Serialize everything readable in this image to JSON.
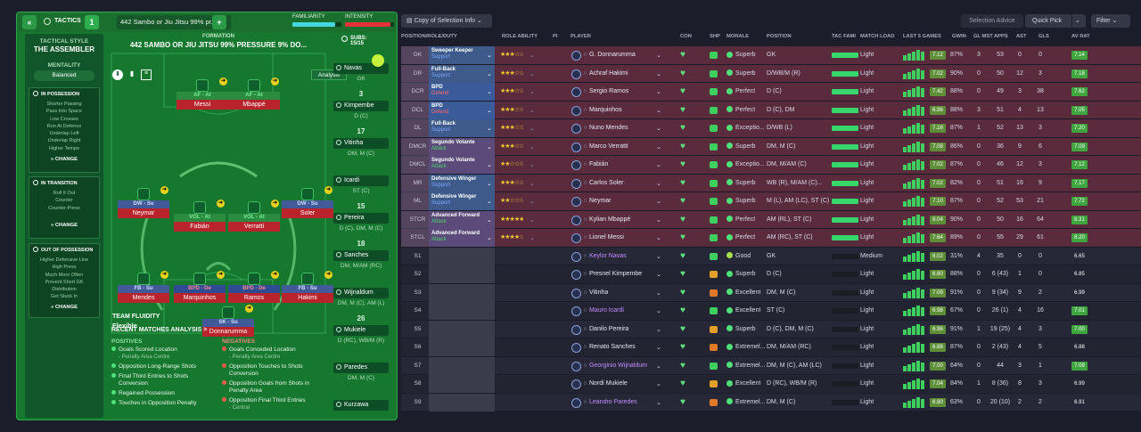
{
  "header": {
    "back_icon": "double-chevron-left-icon",
    "tactics_label": "TACTICS",
    "slot_number": "1",
    "tactic_name": "442 Sambo or Jiu Jitsu 99% pr...",
    "add_label": "+",
    "familiarity_label": "FAMILIARITY",
    "familiarity_fraction": 0.88,
    "intensity_label": "INTENSITY",
    "intensity_fraction": 0.92
  },
  "side": {
    "style_label": "TACTICAL STYLE",
    "style_value": "THE ASSEMBLER",
    "mentality_label": "MENTALITY",
    "mentality_value": "Balanced",
    "in_possession": {
      "title": "IN POSSESSION",
      "items": [
        "Shorter Passing",
        "Pass Into Space",
        "Low Crosses",
        "Run At Defence",
        "Underlap Left",
        "Underlap Right",
        "Higher Tempo"
      ],
      "change": "CHANGE"
    },
    "in_transition": {
      "title": "IN TRANSITION",
      "items": [
        "Roll It Out",
        "Counter",
        "Counter-Press"
      ],
      "change": "CHANGE"
    },
    "out_of_possession": {
      "title": "OUT OF POSSESSION",
      "items": [
        "Higher Defensive Line",
        "High Press",
        "Much More Often",
        "Prevent Short GK",
        "Distribution",
        "Get Stuck In"
      ],
      "change": "CHANGE"
    }
  },
  "pitch": {
    "formation_label": "FORMATION",
    "formation_name": "442 SAMBO OR JIU JITSU 99% PRESSURE 9% DO...",
    "analysis_label": "Analysis",
    "team_fluidity_label": "TEAM FLUIDITY",
    "team_fluidity_value": "Flexible",
    "players": [
      {
        "role": "AF - At",
        "name": "Messi"
      },
      {
        "role": "AF - At",
        "name": "Mbappé"
      },
      {
        "role": "DW - Su",
        "name": "Neymar"
      },
      {
        "role": "VOL - At",
        "name": "Fabián"
      },
      {
        "role": "VOL - At",
        "name": "Verratti"
      },
      {
        "role": "DW - Su",
        "name": "Soler"
      },
      {
        "role": "FB - Su",
        "name": "Mendes"
      },
      {
        "role": "BPD - De",
        "name": "Marquinhos"
      },
      {
        "role": "BPD - De",
        "name": "Ramos"
      },
      {
        "role": "FB - Su",
        "name": "Hakimi"
      },
      {
        "role": "SK - Su",
        "name": "Donnarumma"
      }
    ]
  },
  "subs": {
    "label": "SUBS:",
    "count": "15/15",
    "players": [
      {
        "num": "",
        "name": "Navas",
        "pos": "GK"
      },
      {
        "num": "3",
        "name": "Kimpembe",
        "pos": "D (C)"
      },
      {
        "num": "17",
        "name": "Vitinha",
        "pos": "DM, M (C)"
      },
      {
        "num": "",
        "name": "Icardi",
        "pos": "ST (C)"
      },
      {
        "num": "15",
        "name": "Pereira",
        "pos": "D (C), DM, M (C)"
      },
      {
        "num": "18",
        "name": "Sanches",
        "pos": "DM, M/AM (RC)"
      },
      {
        "num": "",
        "name": "Wijnaldum",
        "pos": "DM, M (C), AM (L)"
      },
      {
        "num": "26",
        "name": "Mukiele",
        "pos": "D (RC), WB/M (R)"
      },
      {
        "num": "",
        "name": "Paredes",
        "pos": "DM, M (C)"
      },
      {
        "num": "",
        "name": "Kurzawa",
        "pos": ""
      }
    ]
  },
  "analysis": {
    "title": "RECENT MATCHES ANALYSIS >",
    "positives_label": "POSITIVES",
    "negatives_label": "NEGATIVES",
    "positives": [
      "Goals Scored Location",
      "- Penalty Area Centre",
      "Opposition Long-Range Shots",
      "Final Third Entries to Shots",
      "Conversion",
      "Regained Possession",
      "Touches in Opposition Penalty"
    ],
    "negatives": [
      "Goals Conceded Location",
      "- Penalty Area Centre",
      "Opposition Touches to Shots",
      "Conversion",
      "Opposition Goals from Shots in",
      "Penalty Area",
      "Opposition Final Third Entries",
      "- Central"
    ]
  },
  "toolbar": {
    "view_dropdown": "Copy of Selection Info",
    "selection_advice": "Selection Advice",
    "quick_pick": "Quick Pick",
    "filter": "Filter"
  },
  "columns": [
    "POSITION/ROLE/DUTY",
    "ROLE ABILITY",
    "PI",
    "PLAYER",
    "CON",
    "SHP",
    "MORALE",
    "POSITION",
    "TAC FAMI",
    "MATCH LOAD",
    "LAST 5 GAMES",
    "GWIN",
    "GL MST",
    "APPS",
    "AST",
    "GLS",
    "AV RAT"
  ],
  "colors": {
    "attack": "#4fd66a",
    "support": "#7ea6ff",
    "defend": "#ff6a6a",
    "starter_row": "#5a2b3d",
    "sub_row": "#232536"
  },
  "rows": [
    {
      "pos": "GK",
      "role": "Sweeper Keeper",
      "duty": "Support",
      "stars": "★★★☆☆",
      "player": "G. Donnarumma",
      "morale": "Superb",
      "position": "GK",
      "load": "Light",
      "form": "7.12",
      "gwin": "87%",
      "glmst": "3",
      "apps": "53",
      "ast": "0",
      "gls": "0",
      "avrat": "7.14",
      "starter": true
    },
    {
      "pos": "DR",
      "role": "Full-Back",
      "duty": "Support",
      "stars": "★★★☆☆",
      "player": "Achraf Hakimi",
      "morale": "Superb",
      "position": "D/WB/M (R)",
      "load": "Light",
      "form": "7.02",
      "gwin": "90%",
      "glmst": "0",
      "apps": "50",
      "ast": "12",
      "gls": "3",
      "avrat": "7.18",
      "starter": true
    },
    {
      "pos": "DCR",
      "role": "BPD",
      "duty": "Defend",
      "stars": "★★★☆☆",
      "player": "Sergio Ramos",
      "morale": "Perfect",
      "position": "D (C)",
      "load": "Light",
      "form": "7.42",
      "gwin": "88%",
      "glmst": "0",
      "apps": "49",
      "ast": "3",
      "gls": "38",
      "avrat": "7.62",
      "starter": true
    },
    {
      "pos": "DCL",
      "role": "BPD",
      "duty": "Defend",
      "stars": "★★★☆☆",
      "player": "Marquinhos",
      "morale": "Perfect",
      "position": "D (C), DM",
      "load": "Light",
      "form": "6.96",
      "gwin": "88%",
      "glmst": "3",
      "apps": "51",
      "ast": "4",
      "gls": "13",
      "avrat": "7.05",
      "starter": true
    },
    {
      "pos": "DL",
      "role": "Full-Back",
      "duty": "Support",
      "stars": "★★★☆☆",
      "player": "Nuno Mendes",
      "morale": "Exceptio...",
      "position": "D/WB (L)",
      "load": "Light",
      "form": "7.16",
      "gwin": "87%",
      "glmst": "1",
      "apps": "52",
      "ast": "13",
      "gls": "3",
      "avrat": "7.20",
      "starter": true
    },
    {
      "pos": "DMCR",
      "role": "Segundo Volante",
      "duty": "Attack",
      "stars": "★★★☆☆",
      "player": "Marco Verratti",
      "morale": "Superb",
      "position": "DM, M (C)",
      "load": "Light",
      "form": "7.08",
      "gwin": "86%",
      "glmst": "0",
      "apps": "36",
      "ast": "9",
      "gls": "6",
      "avrat": "7.09",
      "starter": true
    },
    {
      "pos": "DMCL",
      "role": "Segundo Volante",
      "duty": "Attack",
      "stars": "★★☆☆☆",
      "player": "Fabián",
      "morale": "Exceptio...",
      "position": "DM, M/AM (C)",
      "load": "Light",
      "form": "7.02",
      "gwin": "87%",
      "glmst": "0",
      "apps": "46",
      "ast": "12",
      "gls": "3",
      "avrat": "7.12",
      "starter": true
    },
    {
      "pos": "MR",
      "role": "Defensive Winger",
      "duty": "Support",
      "stars": "★★★☆☆",
      "player": "Carlos Soler",
      "morale": "Superb",
      "position": "WB (R), M/AM (C)...",
      "load": "Light",
      "form": "7.02",
      "gwin": "82%",
      "glmst": "0",
      "apps": "51",
      "ast": "16",
      "gls": "9",
      "avrat": "7.17",
      "starter": true
    },
    {
      "pos": "ML",
      "role": "Defensive Winger",
      "duty": "Support",
      "stars": "★★☆☆☆",
      "player": "Neymar",
      "morale": "Superb",
      "position": "M (L), AM (LC), ST (C)",
      "load": "Light",
      "form": "7.10",
      "gwin": "87%",
      "glmst": "0",
      "apps": "52",
      "ast": "53",
      "gls": "21",
      "avrat": "7.72",
      "starter": true
    },
    {
      "pos": "STCR",
      "role": "Advanced Forward",
      "duty": "Attack",
      "stars": "★★★★★",
      "player": "Kylian Mbappé",
      "morale": "Perfect",
      "position": "AM (RL), ST (C)",
      "load": "Light",
      "form": "8.04",
      "gwin": "90%",
      "glmst": "0",
      "apps": "50",
      "ast": "16",
      "gls": "64",
      "avrat": "8.31",
      "starter": true
    },
    {
      "pos": "STCL",
      "role": "Advanced Forward",
      "duty": "Attack",
      "stars": "★★★★☆",
      "player": "Lionel Messi",
      "morale": "Perfect",
      "position": "AM (RC), ST (C)",
      "load": "Light",
      "form": "7.64",
      "gwin": "89%",
      "glmst": "0",
      "apps": "55",
      "ast": "29",
      "gls": "61",
      "avrat": "8.20",
      "starter": true
    },
    {
      "pos": "S1",
      "player": "Keylor Navas",
      "morale": "Good",
      "position": "GK",
      "load": "Medium",
      "form": "6.02",
      "gwin": "31%",
      "glmst": "4",
      "apps": "35",
      "ast": "0",
      "gls": "0",
      "avrat": "6.65",
      "starter": false
    },
    {
      "pos": "S2",
      "player": "Presnel Kimpembe",
      "morale": "Superb",
      "position": "D (C)",
      "load": "Light",
      "form": "6.80",
      "gwin": "88%",
      "glmst": "0",
      "apps": "6 (43)",
      "ast": "1",
      "gls": "0",
      "avrat": "6.85",
      "starter": false
    },
    {
      "pos": "S3",
      "player": "Vitinha",
      "morale": "Excellent",
      "position": "DM, M (C)",
      "load": "Light",
      "form": "7.09",
      "gwin": "91%",
      "glmst": "0",
      "apps": "9 (34)",
      "ast": "9",
      "gls": "2",
      "avrat": "6.99",
      "starter": false
    },
    {
      "pos": "S4",
      "player": "Mauro Icardi",
      "morale": "Excellent",
      "position": "ST (C)",
      "load": "Light",
      "form": "6.98",
      "gwin": "67%",
      "glmst": "0",
      "apps": "26 (1)",
      "ast": "4",
      "gls": "16",
      "avrat": "7.01",
      "starter": false
    },
    {
      "pos": "S5",
      "player": "Danilo Pereira",
      "morale": "Superb",
      "position": "D (C), DM, M (C)",
      "load": "Light",
      "form": "6.96",
      "gwin": "91%",
      "glmst": "1",
      "apps": "19 (25)",
      "ast": "4",
      "gls": "3",
      "avrat": "7.00",
      "starter": false
    },
    {
      "pos": "S6",
      "player": "Renato Sanches",
      "morale": "Extremel...",
      "position": "DM, M/AM (RC)",
      "load": "Light",
      "form": "6.88",
      "gwin": "87%",
      "glmst": "0",
      "apps": "2 (43)",
      "ast": "4",
      "gls": "5",
      "avrat": "6.88",
      "starter": false
    },
    {
      "pos": "S7",
      "player": "Georginio Wijnaldum",
      "morale": "Extremel...",
      "position": "DM, M (C), AM (LC)",
      "load": "Light",
      "form": "7.00",
      "gwin": "64%",
      "glmst": "0",
      "apps": "44",
      "ast": "3",
      "gls": "1",
      "avrat": "7.09",
      "starter": false
    },
    {
      "pos": "S8",
      "player": "Nordi Mukiele",
      "morale": "Excellent",
      "position": "D (RC), WB/M (R)",
      "load": "Light",
      "form": "7.04",
      "gwin": "84%",
      "glmst": "1",
      "apps": "8 (36)",
      "ast": "8",
      "gls": "3",
      "avrat": "6.99",
      "starter": false
    },
    {
      "pos": "S9",
      "player": "Leandro Paredes",
      "morale": "Extremel...",
      "position": "DM, M (C)",
      "load": "Light",
      "form": "6.80",
      "gwin": "63%",
      "glmst": "0",
      "apps": "20 (10)",
      "ast": "2",
      "gls": "2",
      "avrat": "6.91",
      "starter": false
    }
  ]
}
